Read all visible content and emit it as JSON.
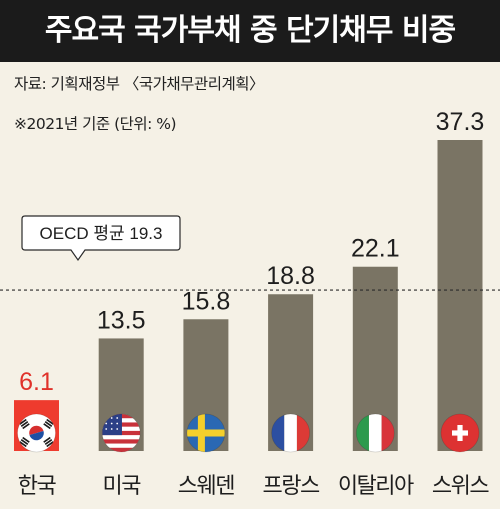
{
  "title": "주요국 국가부채 중 단기채무 비중",
  "source": "자료: 기획재정부 〈국가채무관리계획〉",
  "note": "※2021년 기준 (단위: %)",
  "colors": {
    "background": "#f5f1e6",
    "title_bar": "#1b1b1b",
    "bar": "#7a7464",
    "highlight_bar": "#ee3b2e",
    "highlight_text": "#e0322a",
    "text": "#1e1e1e"
  },
  "chart_data": {
    "type": "bar",
    "title": "주요국 국가부채 중 단기채무 비중",
    "xlabel": "",
    "ylabel": "",
    "unit": "%",
    "ylim": [
      0,
      37.3
    ],
    "grid": false,
    "categories": [
      "한국",
      "미국",
      "스웨덴",
      "프랑스",
      "이탈리아",
      "스위스"
    ],
    "values": [
      6.1,
      13.5,
      15.8,
      18.8,
      22.1,
      37.3
    ],
    "value_labels": [
      "6.1",
      "13.5",
      "15.8",
      "18.8",
      "22.1",
      "37.3"
    ],
    "flags": [
      "south-korea-flag",
      "usa-flag",
      "sweden-flag",
      "france-flag",
      "italy-flag",
      "switzerland-flag"
    ],
    "highlight_index": 0,
    "reference_line": {
      "label": "OECD 평균 19.3",
      "value": 19.3,
      "style": "dashed"
    }
  }
}
